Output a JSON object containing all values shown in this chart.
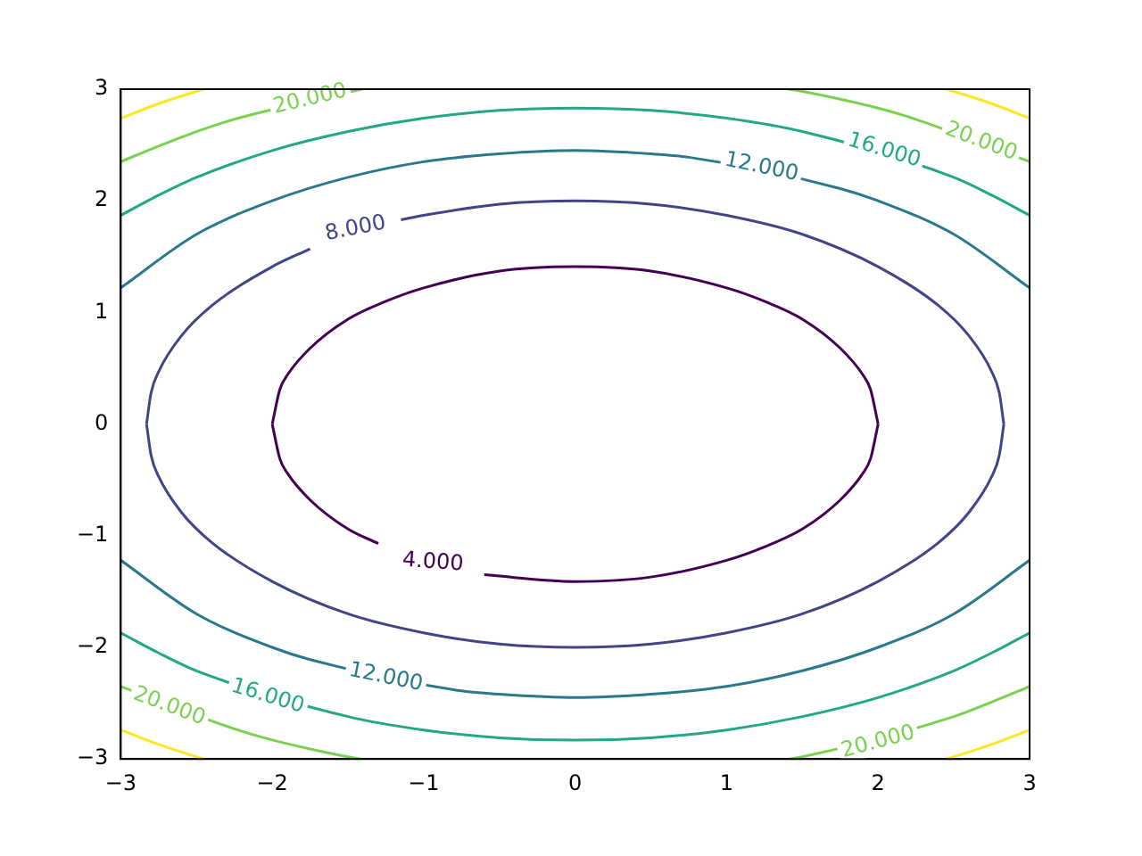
{
  "chart_data": {
    "type": "line",
    "marker": "none",
    "legend": false,
    "grid": false,
    "xlim": [
      -3,
      3
    ],
    "xticks": [
      -3,
      -2,
      -1,
      0,
      1,
      2,
      3
    ],
    "ylim": [
      -3,
      3
    ],
    "yticks": [
      -3,
      -2,
      -1,
      0,
      1,
      2,
      3
    ],
    "series": [
      {
        "color": "#440154",
        "x": [
          -0.6,
          0,
          0.5,
          1,
          1.25,
          1.5,
          1.75,
          1.9,
          1.95,
          2
        ],
        "values": [
          -1.35,
          -1.41,
          -1.37,
          -1.22,
          -1.1,
          -0.94,
          -0.68,
          -0.44,
          -0.31,
          0
        ]
      },
      {
        "color": "#440154",
        "x": [
          2,
          1.95,
          1.9,
          1.75,
          1.5,
          1.25,
          1,
          0.5,
          0,
          -0.5,
          -1,
          -1.25,
          -1.5,
          -1.75,
          -1.9,
          -1.95,
          -2
        ],
        "values": [
          0,
          0.31,
          0.44,
          0.68,
          0.94,
          1.1,
          1.22,
          1.37,
          1.41,
          1.37,
          1.22,
          1.1,
          0.94,
          0.68,
          0.44,
          0.31,
          0
        ]
      },
      {
        "color": "#440154",
        "x": [
          -2,
          -1.95,
          -1.9,
          -1.75,
          -1.5,
          -1.3
        ],
        "values": [
          0,
          -0.31,
          -0.44,
          -0.68,
          -0.94,
          -1.07
        ]
      },
      {
        "color": "#414487",
        "x": [
          -1.15,
          -1,
          -0.5,
          0,
          0.5,
          1,
          1.5,
          2,
          2.4,
          2.6,
          2.75,
          2.8,
          2.83
        ],
        "values": [
          1.83,
          1.87,
          1.97,
          2,
          1.97,
          1.87,
          1.7,
          1.41,
          1.06,
          0.79,
          0.47,
          0.28,
          0
        ]
      },
      {
        "color": "#414487",
        "x": [
          2.83,
          2.8,
          2.75,
          2.6,
          2.4,
          2,
          1.5,
          1,
          0.5,
          0,
          -0.5,
          -1,
          -1.5,
          -2,
          -2.4,
          -2.6,
          -2.75,
          -2.8,
          -2.83
        ],
        "values": [
          0,
          -0.28,
          -0.47,
          -0.79,
          -1.06,
          -1.41,
          -1.7,
          -1.87,
          -1.97,
          -2,
          -1.97,
          -1.87,
          -1.7,
          -1.41,
          -1.06,
          -0.79,
          -0.47,
          -0.28,
          0
        ]
      },
      {
        "color": "#414487",
        "x": [
          -2.83,
          -2.8,
          -2.75,
          -2.6,
          -2.4,
          -2,
          -1.75
        ],
        "values": [
          0,
          0.28,
          0.47,
          0.79,
          1.06,
          1.41,
          1.57
        ]
      },
      {
        "color": "#2a788e",
        "x": [
          3,
          2.5,
          2,
          1.75,
          0.75,
          0.5,
          0,
          -0.5,
          -1,
          -1.5,
          -2,
          -2.5,
          -3
        ],
        "values": [
          1.22,
          1.7,
          2,
          2.11,
          2.39,
          2.42,
          2.45,
          2.42,
          2.35,
          2.21,
          2,
          1.7,
          1.22
        ]
      },
      {
        "color": "#2a788e",
        "x": [
          3,
          2.5,
          2,
          1.5,
          1,
          0.5,
          0,
          -0.5,
          -0.75,
          -1.75,
          -2,
          -2.5,
          -3
        ],
        "values": [
          -1.22,
          -1.7,
          -2,
          -2.21,
          -2.35,
          -2.42,
          -2.45,
          -2.42,
          -2.39,
          -2.11,
          -2,
          -1.7,
          -1.22
        ]
      },
      {
        "color": "#22a884",
        "x": [
          3,
          2.75,
          2.5,
          1.5,
          1,
          0.5,
          0,
          -0.5,
          -1,
          -1.5,
          -2,
          -2.5,
          -2.75,
          -3
        ],
        "values": [
          1.87,
          2.05,
          2.21,
          2.62,
          2.74,
          2.81,
          2.83,
          2.81,
          2.74,
          2.62,
          2.45,
          2.21,
          2.05,
          1.87
        ]
      },
      {
        "color": "#22a884",
        "x": [
          3,
          2.75,
          2.5,
          2,
          1.5,
          1,
          0.5,
          0,
          -0.5,
          -1,
          -1.5,
          -2.5,
          -2.75,
          -3
        ],
        "values": [
          -1.87,
          -2.05,
          -2.21,
          -2.45,
          -2.62,
          -2.74,
          -2.81,
          -2.83,
          -2.81,
          -2.74,
          -2.62,
          -2.21,
          -2.05,
          -1.87
        ]
      },
      {
        "color": "#7ad151",
        "x": [
          3,
          2.25,
          2,
          1.75,
          1.5,
          1.41
        ],
        "values": [
          2.35,
          2.73,
          2.83,
          2.91,
          2.98,
          3
        ]
      },
      {
        "color": "#7ad151",
        "x": [
          -3,
          -2.75,
          -2.5,
          -2.25,
          -1.41
        ],
        "values": [
          2.35,
          2.49,
          2.62,
          2.73,
          3
        ]
      },
      {
        "color": "#7ad151",
        "x": [
          -3,
          -2.25,
          -2,
          -1.75,
          -1.5,
          -1.41
        ],
        "values": [
          -2.35,
          -2.73,
          -2.83,
          -2.91,
          -2.98,
          -3
        ]
      },
      {
        "color": "#7ad151",
        "x": [
          3,
          2.75,
          2.5,
          1.5,
          1.41
        ],
        "values": [
          -2.35,
          -2.49,
          -2.62,
          -2.98,
          -3
        ]
      },
      {
        "color": "#fde725",
        "x": [
          3,
          2.75,
          2.5,
          2.45
        ],
        "values": [
          2.74,
          2.87,
          2.98,
          3
        ]
      },
      {
        "color": "#fde725",
        "x": [
          -3,
          -2.75,
          -2.5,
          -2.45
        ],
        "values": [
          2.74,
          2.87,
          2.98,
          3
        ]
      },
      {
        "color": "#fde725",
        "x": [
          -3,
          -2.75,
          -2.5,
          -2.45
        ],
        "values": [
          -2.74,
          -2.87,
          -2.98,
          -3
        ]
      },
      {
        "color": "#fde725",
        "x": [
          3,
          2.75,
          2.5,
          2.45
        ],
        "values": [
          -2.74,
          -2.87,
          -2.98,
          -3
        ]
      }
    ],
    "annotations": [
      {
        "text": "4.000",
        "x": -0.94,
        "y": -1.24
      },
      {
        "text": "8.000",
        "x": -1.45,
        "y": 1.75
      },
      {
        "text": "12.000",
        "x": 1.23,
        "y": 2.3
      },
      {
        "text": "12.000",
        "x": -1.25,
        "y": -2.27
      },
      {
        "text": "16.000",
        "x": 2.04,
        "y": 2.45
      },
      {
        "text": "16.000",
        "x": -2.03,
        "y": -2.44
      },
      {
        "text": "20.000",
        "x": -1.75,
        "y": 2.91
      },
      {
        "text": "20.000",
        "x": 2.68,
        "y": 2.53
      },
      {
        "text": "20.000",
        "x": -2.68,
        "y": -2.53
      },
      {
        "text": "20.000",
        "x": 2.0,
        "y": -2.85
      }
    ]
  }
}
